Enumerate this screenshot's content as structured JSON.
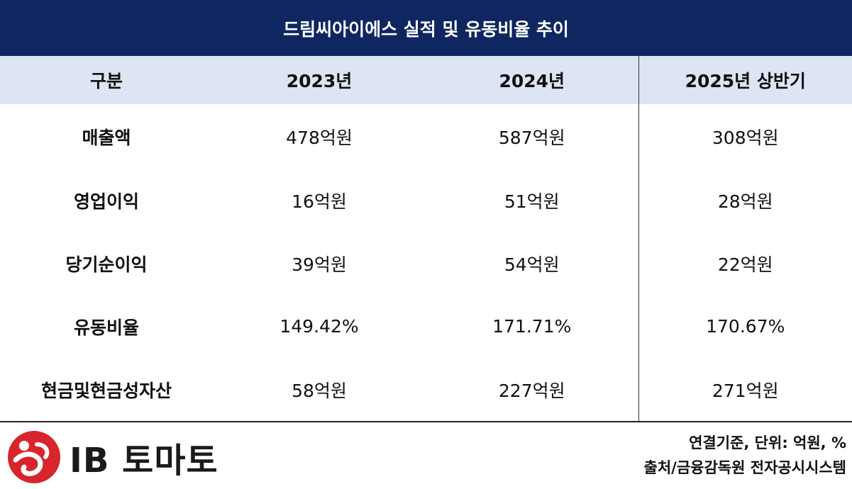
{
  "title": "드림씨아이에스 실적 및 유동비율 추이",
  "header": {
    "label": "구분",
    "col1": "2023년",
    "col2": "2024년",
    "col3": "2025년 상반기"
  },
  "rows": [
    {
      "label": "매출액",
      "v2023": "478억원",
      "v2024": "587억원",
      "v2025h1": "308억원"
    },
    {
      "label": "영업이익",
      "v2023": "16억원",
      "v2024": "51억원",
      "v2025h1": "28억원"
    },
    {
      "label": "당기순이익",
      "v2023": "39억원",
      "v2024": "54억원",
      "v2025h1": "22억원"
    },
    {
      "label": "유동비율",
      "v2023": "149.42%",
      "v2024": "171.71%",
      "v2025h1": "170.67%"
    },
    {
      "label": "현금및현금성자산",
      "v2023": "58억원",
      "v2024": "227억원",
      "v2025h1": "271억원"
    }
  ],
  "footer": {
    "logo_text": "IB 토마토",
    "basis_note": "연결기준, 단위: 억원, %",
    "source_note": "출처/금융감독원 전자공시시스템"
  },
  "colors": {
    "title_bg": "#0f2660",
    "header_bg": "#dde4f4",
    "logo_red": "#d7252b"
  }
}
